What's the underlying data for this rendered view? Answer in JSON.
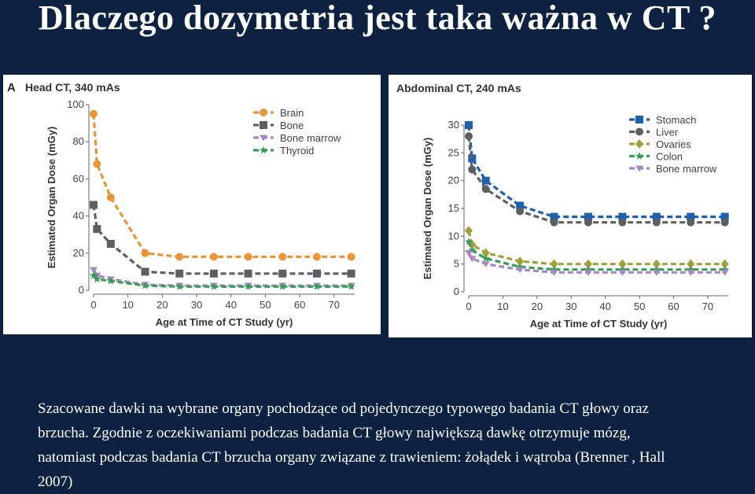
{
  "slide": {
    "title": "Dlaczego dozymetria jest taka ważna w CT ?",
    "caption_lines": [
      "Szacowane dawki  na wybrane organy pochodzące od pojedynczego typowego badania CT głowy oraz",
      "brzucha. Zgodnie z oczekiwaniami podczas badania CT głowy największą dawkę otrzymuje mózg,",
      "natomiast  podczas badania CT brzucha organy związane z trawieniem: żołądek i wątroba (Brenner , Hall",
      "2007)"
    ]
  },
  "chart_data": [
    {
      "type": "line",
      "panel_letter": "A",
      "title": "Head CT, 340 mAs",
      "xlabel": "Age at Time of CT Study (yr)",
      "ylabel": "Estimated Organ Dose (mGy)",
      "x_ticks": [
        0,
        10,
        20,
        30,
        40,
        50,
        60,
        70
      ],
      "y_ticks": [
        0,
        20,
        40,
        60,
        80,
        100
      ],
      "xlim": [
        0,
        76
      ],
      "ylim": [
        0,
        100
      ],
      "legend_position": "top-right",
      "x": [
        0,
        1,
        5,
        15,
        25,
        35,
        45,
        55,
        65,
        75
      ],
      "series": [
        {
          "name": "Brain",
          "color": "#e8963a",
          "marker": "circle",
          "values": [
            95,
            68,
            50,
            20,
            18,
            18,
            18,
            18,
            18,
            18
          ]
        },
        {
          "name": "Bone",
          "color": "#5d5f63",
          "marker": "square",
          "values": [
            46,
            33,
            25,
            10,
            9,
            9,
            9,
            9,
            9,
            9
          ]
        },
        {
          "name": "Bone marrow",
          "color": "#a48ac2",
          "marker": "triangle",
          "values": [
            11,
            8,
            6,
            3,
            2.5,
            2.5,
            2.5,
            2.5,
            2.5,
            2.5
          ]
        },
        {
          "name": "Thyroid",
          "color": "#3a9c54",
          "marker": "star",
          "values": [
            8,
            6,
            5,
            2.5,
            2,
            2,
            2,
            2,
            2,
            2
          ]
        }
      ]
    },
    {
      "type": "line",
      "title": "Abdominal CT, 240 mAs",
      "xlabel": "Age at Time of CT Study (yr)",
      "ylabel": "Estimated Organ Dose (mGy)",
      "x_ticks": [
        0,
        10,
        20,
        30,
        40,
        50,
        60,
        70
      ],
      "y_ticks": [
        0,
        5,
        10,
        15,
        20,
        25,
        30
      ],
      "xlim": [
        0,
        76
      ],
      "ylim": [
        0,
        30
      ],
      "legend_position": "top-right",
      "x": [
        0,
        1,
        5,
        15,
        25,
        35,
        45,
        55,
        65,
        75
      ],
      "series": [
        {
          "name": "Stomach",
          "color": "#1f5fae",
          "marker": "square",
          "values": [
            30,
            24,
            20,
            15.5,
            13.5,
            13.5,
            13.5,
            13.5,
            13.5,
            13.5
          ]
        },
        {
          "name": "Liver",
          "color": "#5d5f63",
          "marker": "circle",
          "values": [
            28,
            22,
            18.5,
            14.5,
            12.5,
            12.5,
            12.5,
            12.5,
            12.5,
            12.5
          ]
        },
        {
          "name": "Ovaries",
          "color": "#a2a03a",
          "marker": "diamond",
          "values": [
            11,
            8.5,
            7,
            5.5,
            5,
            5,
            5,
            5,
            5,
            5
          ]
        },
        {
          "name": "Colon",
          "color": "#3a9c54",
          "marker": "star",
          "values": [
            9,
            7.5,
            6,
            4.5,
            4,
            4,
            4,
            4,
            4,
            4
          ]
        },
        {
          "name": "Bone marrow",
          "color": "#a48ac2",
          "marker": "triangle",
          "values": [
            7,
            6,
            5,
            4,
            3.5,
            3.5,
            3.5,
            3.5,
            3.5,
            3.5
          ]
        }
      ]
    }
  ]
}
